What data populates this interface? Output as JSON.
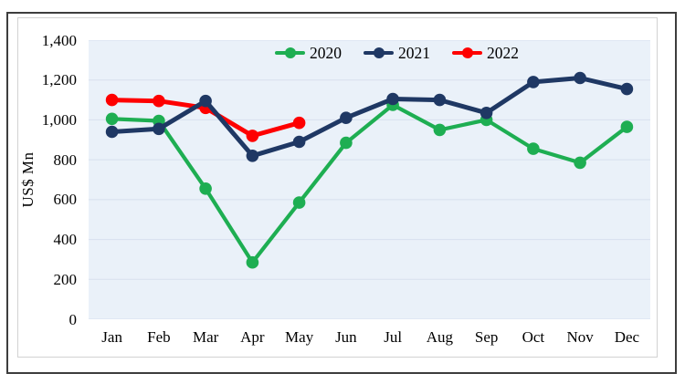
{
  "figure": {
    "ylabel": "US$ Mn",
    "yticks": [
      "0",
      "200",
      "400",
      "600",
      "800",
      "1,000",
      "1,200",
      "1,400"
    ],
    "xticks": [
      "Jan",
      "Feb",
      "Mar",
      "Apr",
      "May",
      "Jun",
      "Jul",
      "Aug",
      "Sep",
      "Oct",
      "Nov",
      "Dec"
    ],
    "plot_bg": "#eaf1f9",
    "grid_color": "#d7e0ee"
  },
  "chart_data": {
    "type": "line",
    "title": "",
    "categories": [
      "Jan",
      "Feb",
      "Mar",
      "Apr",
      "May",
      "Jun",
      "Jul",
      "Aug",
      "Sep",
      "Oct",
      "Nov",
      "Dec"
    ],
    "series": [
      {
        "name": "2020",
        "color": "#1eae52",
        "values": [
          1005,
          995,
          655,
          285,
          585,
          885,
          1075,
          950,
          1000,
          855,
          785,
          965
        ]
      },
      {
        "name": "2021",
        "color": "#1f3864",
        "values": [
          940,
          955,
          1095,
          820,
          890,
          1010,
          1105,
          1100,
          1035,
          1190,
          1210,
          1155
        ]
      },
      {
        "name": "2022",
        "color": "#fe0000",
        "values": [
          1100,
          1095,
          1060,
          920,
          985
        ]
      }
    ],
    "xlabel": "",
    "ylabel": "US$ Mn",
    "ylim": [
      0,
      1400
    ],
    "ytick_step": 200,
    "grid": true,
    "legend_position": "top-center",
    "draw_order": [
      0,
      2,
      1
    ]
  }
}
